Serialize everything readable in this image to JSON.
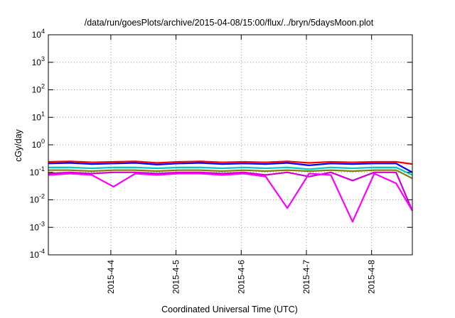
{
  "chart_data": {
    "type": "line",
    "title": "/data/run/goesPlots/archive/2015-04-08/15:00/flux/../bryn/5daysMoon.plot",
    "xlabel": "Coordinated Universal Time (UTC)",
    "ylabel": "cGy/day",
    "yscale": "log",
    "ylim": [
      0.0001,
      10000
    ],
    "xlim": [
      "2015-04-03T01:00",
      "2015-04-08T15:00"
    ],
    "grid": true,
    "y_ticks": [
      {
        "base": "10",
        "exp": "-4",
        "value": 0.0001
      },
      {
        "base": "10",
        "exp": "-3",
        "value": 0.001
      },
      {
        "base": "10",
        "exp": "-2",
        "value": 0.01
      },
      {
        "base": "10",
        "exp": "-1",
        "value": 0.1
      },
      {
        "base": "10",
        "exp": "0",
        "value": 1
      },
      {
        "base": "10",
        "exp": "1",
        "value": 10
      },
      {
        "base": "10",
        "exp": "2",
        "value": 100
      },
      {
        "base": "10",
        "exp": "3",
        "value": 1000
      },
      {
        "base": "10",
        "exp": "4",
        "value": 10000
      }
    ],
    "x_ticks": [
      {
        "label": "2015-4-4",
        "value": "2015-04-04T00:00"
      },
      {
        "label": "2015-4-5",
        "value": "2015-04-05T00:00"
      },
      {
        "label": "2015-4-6",
        "value": "2015-04-06T00:00"
      },
      {
        "label": "2015-4-7",
        "value": "2015-04-07T00:00"
      },
      {
        "label": "2015-4-8",
        "value": "2015-04-08T00:00"
      }
    ],
    "x": [
      "2015-04-03T01:00",
      "2015-04-03T09:00",
      "2015-04-03T17:00",
      "2015-04-04T01:00",
      "2015-04-04T09:00",
      "2015-04-04T17:00",
      "2015-04-05T01:00",
      "2015-04-05T09:00",
      "2015-04-05T17:00",
      "2015-04-06T01:00",
      "2015-04-06T09:00",
      "2015-04-06T17:00",
      "2015-04-07T01:00",
      "2015-04-07T09:00",
      "2015-04-07T17:00",
      "2015-04-08T01:00",
      "2015-04-08T09:00",
      "2015-04-08T15:00"
    ],
    "series": [
      {
        "color": "#ff0000",
        "values": [
          0.24,
          0.25,
          0.23,
          0.24,
          0.25,
          0.22,
          0.24,
          0.25,
          0.23,
          0.24,
          0.23,
          0.25,
          0.22,
          0.24,
          0.23,
          0.24,
          0.24,
          0.2
        ]
      },
      {
        "color": "#0000ff",
        "values": [
          0.21,
          0.22,
          0.2,
          0.21,
          0.22,
          0.19,
          0.21,
          0.22,
          0.2,
          0.21,
          0.2,
          0.22,
          0.18,
          0.21,
          0.2,
          0.21,
          0.21,
          0.1
        ]
      },
      {
        "color": "#00c8c8",
        "values": [
          0.15,
          0.15,
          0.14,
          0.15,
          0.15,
          0.14,
          0.15,
          0.15,
          0.14,
          0.15,
          0.14,
          0.15,
          0.13,
          0.15,
          0.14,
          0.15,
          0.15,
          0.08
        ]
      },
      {
        "color": "#808000",
        "values": [
          0.12,
          0.12,
          0.11,
          0.12,
          0.12,
          0.11,
          0.12,
          0.12,
          0.11,
          0.12,
          0.11,
          0.12,
          0.11,
          0.12,
          0.11,
          0.12,
          0.12,
          0.06
        ]
      },
      {
        "color": "#d000d0",
        "values": [
          0.09,
          0.1,
          0.09,
          0.1,
          0.1,
          0.09,
          0.1,
          0.1,
          0.09,
          0.1,
          0.08,
          0.1,
          0.07,
          0.1,
          0.05,
          0.1,
          0.1,
          0.004
        ]
      },
      {
        "color": "#ff00ff",
        "values": [
          0.08,
          0.09,
          0.08,
          0.03,
          0.09,
          0.08,
          0.09,
          0.09,
          0.08,
          0.09,
          0.07,
          0.005,
          0.09,
          0.08,
          0.0016,
          0.09,
          0.04,
          0.004
        ]
      }
    ]
  }
}
